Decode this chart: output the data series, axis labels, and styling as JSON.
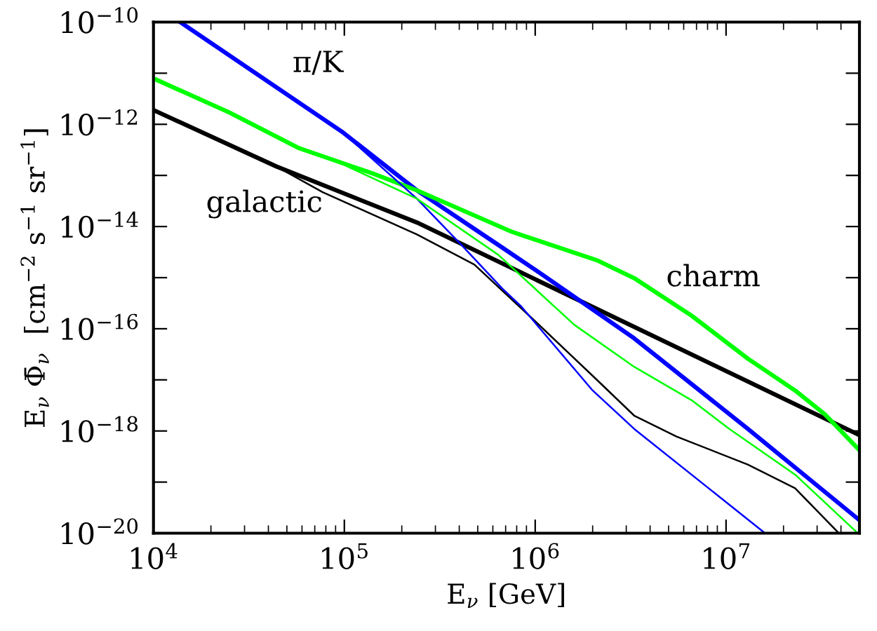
{
  "chart_data": {
    "type": "line",
    "xlabel": "E$_{ν}$ [GeV]",
    "ylabel": "E$_{ν}$ Φ̄$_{ν}$  [cm$^{−2}$ s$^{−1}$ sr$^{−1}$]",
    "log": "xy",
    "grid": false,
    "legend": false,
    "marker": "none",
    "line_style": "solid",
    "xlim": [
      10000,
      50000000
    ],
    "ylim": [
      1e-20,
      1e-10
    ],
    "xticks": [
      {
        "value": 10000,
        "label": "10$^{4}$"
      },
      {
        "value": 100000,
        "label": "10$^{5}$"
      },
      {
        "value": 1000000,
        "label": "10$^{6}$"
      },
      {
        "value": 10000000,
        "label": "10$^{7}$"
      }
    ],
    "yticks": [
      {
        "value": 1e-20,
        "label": "10$^{−20}$"
      },
      {
        "value": 1e-19,
        "label": null
      },
      {
        "value": 1e-18,
        "label": "10$^{−18}$"
      },
      {
        "value": 1e-17,
        "label": null
      },
      {
        "value": 1e-16,
        "label": "10$^{−16}$"
      },
      {
        "value": 1e-15,
        "label": null
      },
      {
        "value": 1e-14,
        "label": "10$^{−14}$"
      },
      {
        "value": 1e-13,
        "label": null
      },
      {
        "value": 1e-12,
        "label": "10$^{−12}$"
      },
      {
        "value": 1e-11,
        "label": null
      },
      {
        "value": 1e-10,
        "label": "10$^{−10}$"
      }
    ],
    "series": [
      {
        "color": "#000000",
        "x": [
          10000,
          44000,
          240000,
          50000000
        ],
        "values": [
          1.9e-12,
          1.5e-13,
          1.2e-14,
          8.3e-19
        ]
      },
      {
        "color": "#0000ff",
        "x": [
          13800,
          97000,
          240000,
          670000,
          1070000,
          3300000,
          13000000,
          50000000
        ],
        "values": [
          1e-10,
          7.2e-13,
          5.1e-14,
          3.9e-15,
          1.2e-15,
          6.5e-17,
          1.1e-18,
          1.8e-20
        ]
      },
      {
        "color": "#00ff00",
        "x": [
          10000,
          25000,
          58000,
          140000,
          240000,
          760000,
          2100000,
          3300000,
          6600000,
          13000000,
          23000000,
          33000000,
          50000000
        ],
        "values": [
          7.9e-12,
          1.7e-12,
          3.4e-13,
          1.1e-13,
          5.1e-14,
          7.8e-15,
          2.2e-15,
          9.8e-16,
          1.8e-16,
          2.6e-17,
          6.2e-18,
          2.1e-18,
          4.2e-19
        ]
      },
      {
        "color": "#000000",
        "x": [
          10000,
          44000,
          77000,
          240000,
          480000,
          1000000,
          2000000,
          3300000,
          5500000,
          13000000,
          23000000,
          39000000
        ],
        "values": [
          1.9e-12,
          1.5e-13,
          4.7e-14,
          7e-15,
          1.8e-15,
          1.4e-16,
          1.2e-17,
          2e-18,
          7.8e-19,
          2.2e-19,
          7.6e-20,
          1e-20
        ]
      },
      {
        "color": "#0000ff",
        "x": [
          13800,
          97000,
          240000,
          420000,
          670000,
          840000,
          2000000,
          3300000,
          16000000
        ],
        "values": [
          1e-10,
          7.2e-13,
          3.5e-14,
          4e-15,
          6.2e-16,
          2.8e-16,
          6.2e-18,
          1.1e-18,
          1e-20
        ]
      },
      {
        "color": "#00ff00",
        "x": [
          10000,
          25000,
          58000,
          100000,
          240000,
          640000,
          1600000,
          3300000,
          6600000,
          10400000,
          23000000,
          49000000
        ],
        "values": [
          7.9e-12,
          1.7e-12,
          3.4e-13,
          1.6e-13,
          3.5e-14,
          2.8e-15,
          1.2e-16,
          1.8e-17,
          4e-18,
          1.1e-18,
          1.4e-19,
          1e-20
        ]
      }
    ],
    "annotations": [
      "π/K",
      "galactic",
      "charm"
    ]
  }
}
